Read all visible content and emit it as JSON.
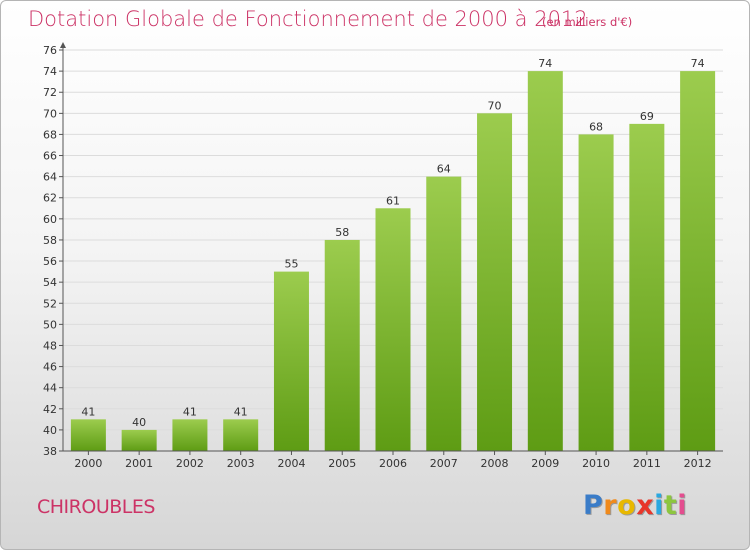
{
  "title": "Dotation Globale de Fonctionnement de 2000 à 2012",
  "subtitle": "(en milliers d'€)",
  "location": "CHIROUBLES",
  "brand": {
    "text": "Proxiti",
    "letter_colors": [
      "#3a7cc8",
      "#f08a1c",
      "#e8b800",
      "#e8362a",
      "#2aa8e0",
      "#8dc63f",
      "#e44d8f"
    ]
  },
  "colors": {
    "title": "#cc3366",
    "bar_top": "#9ccc4e",
    "bar_bottom": "#5e9c14"
  },
  "chart_data": {
    "type": "bar",
    "title": "Dotation Globale de Fonctionnement de 2000 à 2012",
    "unit": "(en milliers d'€)",
    "categories": [
      "2000",
      "2001",
      "2002",
      "2003",
      "2004",
      "2005",
      "2006",
      "2007",
      "2008",
      "2009",
      "2010",
      "2011",
      "2012"
    ],
    "values": [
      41,
      40,
      41,
      41,
      55,
      58,
      61,
      64,
      70,
      74,
      68,
      69,
      74
    ],
    "ylim": [
      38,
      76
    ],
    "ytick_step": 2,
    "grid": true,
    "data_labels": true
  }
}
